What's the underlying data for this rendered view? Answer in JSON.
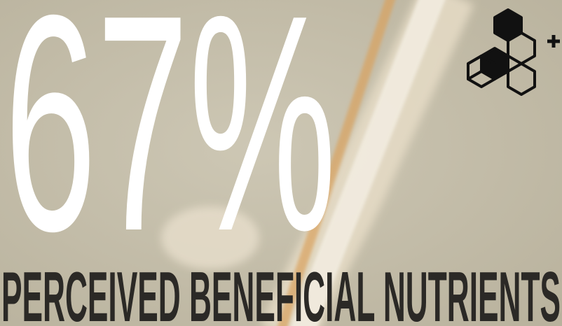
{
  "headline": {
    "stat": "67%",
    "caption": "PERCEIVED BENEFICIAL NUTRIENTS"
  }
}
